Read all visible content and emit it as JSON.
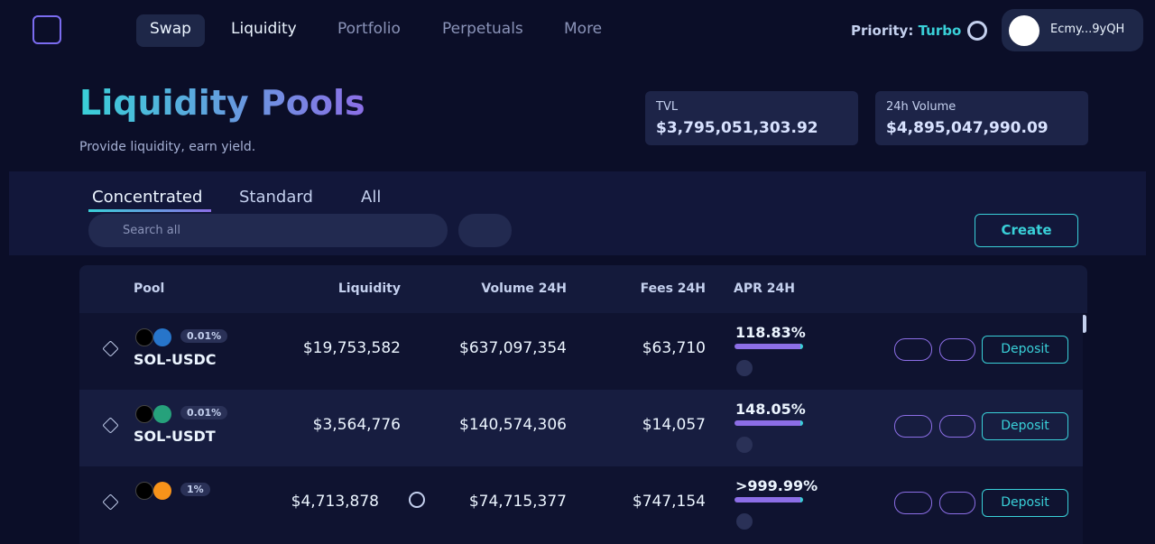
{
  "nav": {
    "items": [
      "Swap",
      "Liquidity",
      "Portfolio",
      "Perpetuals",
      "More"
    ],
    "priority_label": "Priority:",
    "priority_value": "Turbo",
    "wallet": "Ecmy...9yQH"
  },
  "header": {
    "title": "Liquidity Pools",
    "subtitle": "Provide liquidity, earn yield."
  },
  "stats": [
    {
      "label": "TVL",
      "value": "$3,795,051,303.92"
    },
    {
      "label": "24h Volume",
      "value": "$4,895,047,990.09"
    }
  ],
  "tabs": [
    "Concentrated",
    "Standard",
    "All"
  ],
  "search_placeholder": "Search all",
  "create": "Create",
  "table": {
    "columns": [
      "Pool",
      "Liquidity",
      "Volume 24H",
      "Fees 24H",
      "APR 24H"
    ],
    "rows": [
      {
        "fee": "0.01%",
        "name": "SOL-USDC",
        "liquidity": "$19,753,582",
        "volume": "$637,097,354",
        "fees": "$63,710",
        "apr": "118.83%",
        "action": "Deposit"
      },
      {
        "fee": "0.01%",
        "name": "SOL-USDT",
        "liquidity": "$3,564,776",
        "volume": "$140,574,306",
        "fees": "$14,057",
        "apr": "148.05%",
        "action": "Deposit"
      },
      {
        "fee": "1%",
        "liquidity": "$4,713,878",
        "volume": "$74,715,377",
        "fees": "$747,154",
        "apr": ">999.99%",
        "action": "Deposit"
      }
    ]
  }
}
